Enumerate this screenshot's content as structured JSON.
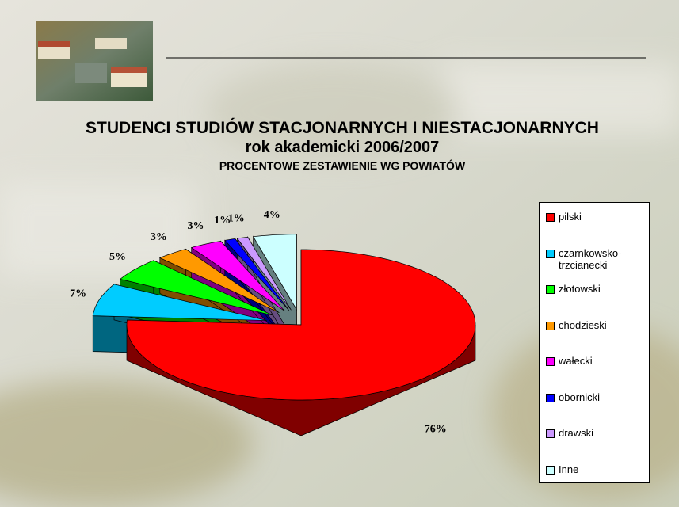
{
  "chart_data": {
    "type": "pie3d",
    "title": "STUDENCI STUDIÓW STACJONARNYCH I NIESTACJONARNYCH",
    "subtitle": "rok akademicki 2006/2007",
    "caption": "PROCENTOWE ZESTAWIENIE WG POWIATÓW",
    "categories": [
      "pilski",
      "czarnkowsko-trzcianecki",
      "złotowski",
      "chodzieski",
      "wałecki",
      "obornicki",
      "drawski",
      "Inne"
    ],
    "values": [
      76,
      7,
      5,
      3,
      3,
      1,
      1,
      4
    ],
    "value_labels": [
      "76%",
      "7%",
      "5%",
      "3%",
      "3%",
      "1%",
      "1%",
      "4%"
    ],
    "colors": [
      "#ff0000",
      "#00ccff",
      "#00ff00",
      "#ff9900",
      "#ff00ff",
      "#0000ff",
      "#cc99ff",
      "#ccffff"
    ],
    "legend": "right"
  }
}
